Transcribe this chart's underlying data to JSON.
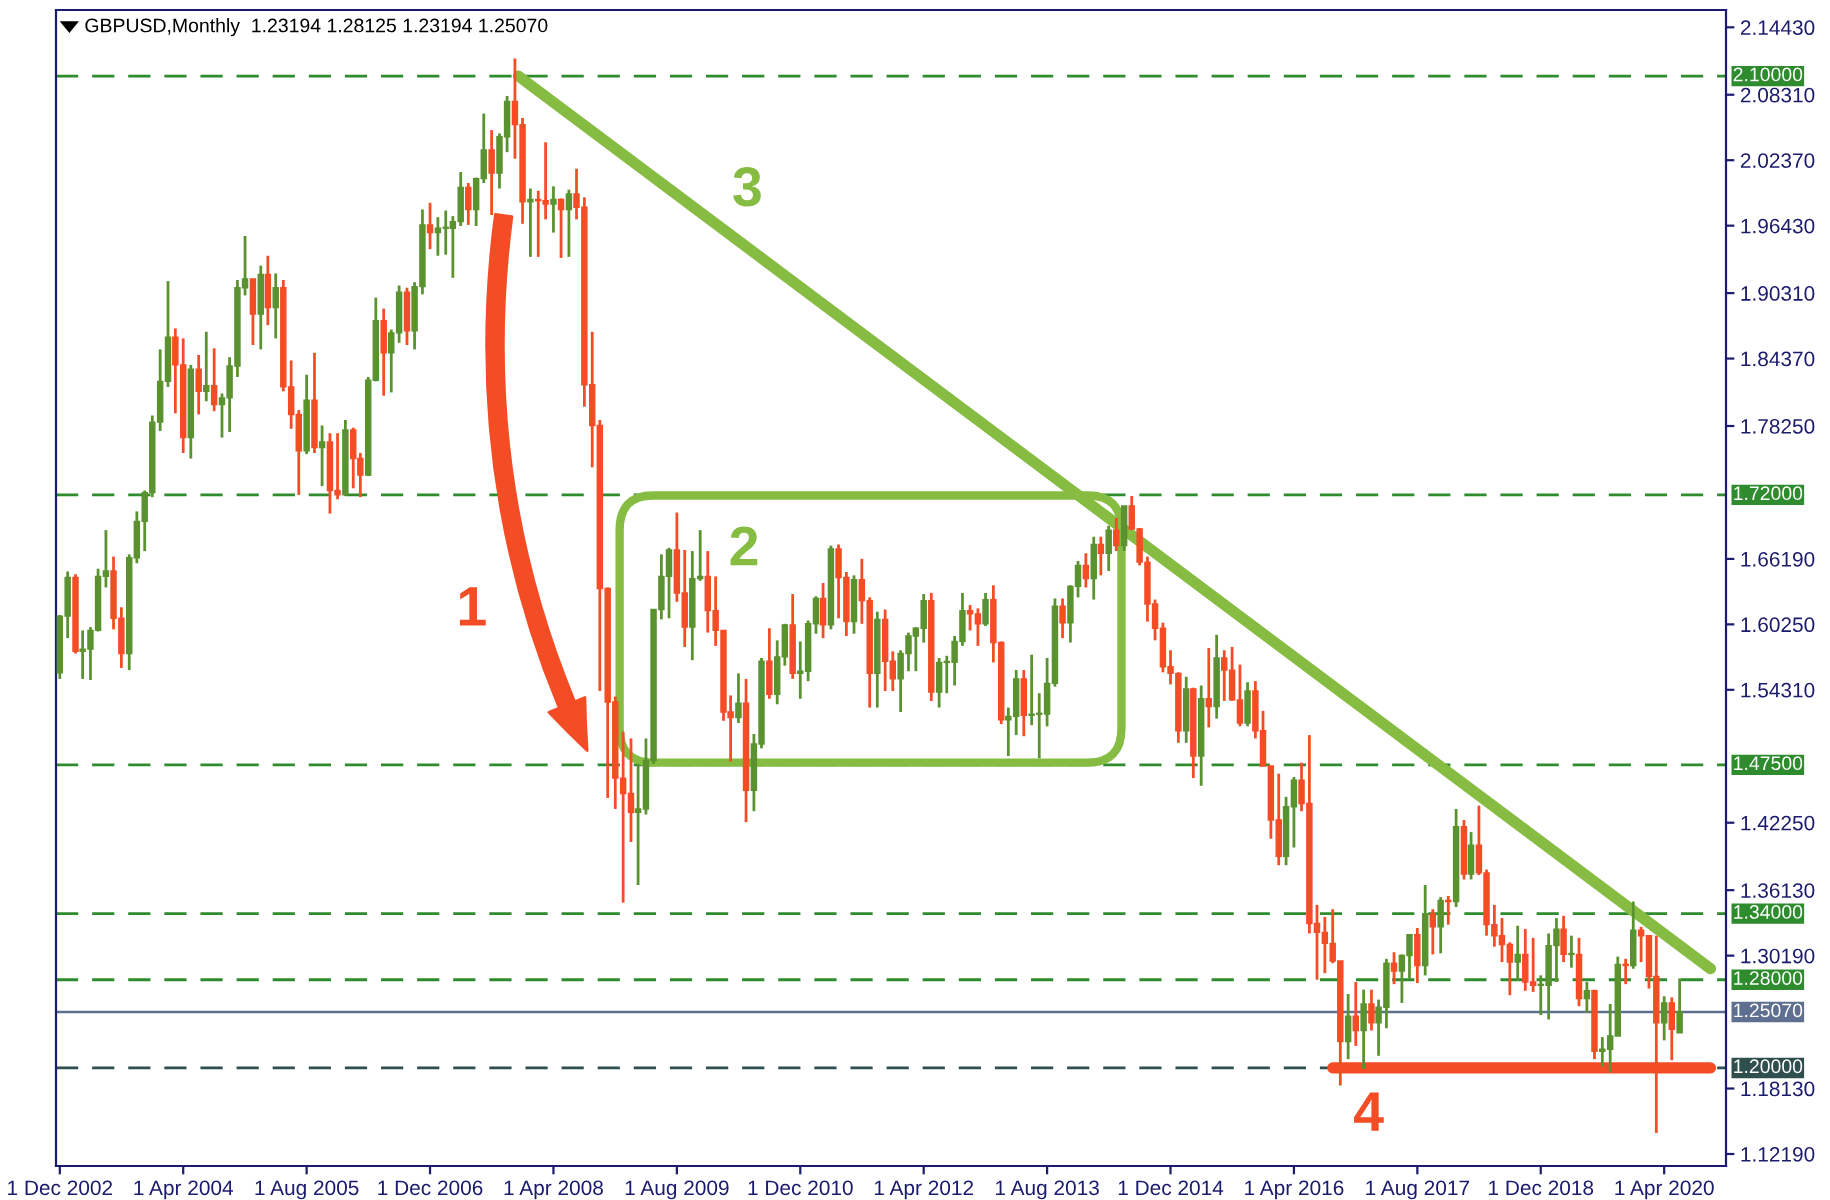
{
  "chart_data": {
    "type": "candlestick",
    "title": "GBPUSD,Monthly  1.23194 1.28125 1.23194 1.25070",
    "x": [
      "2002-12",
      "2003-01",
      "2003-02",
      "2003-03",
      "2003-04",
      "2003-05",
      "2003-06",
      "2003-07",
      "2003-08",
      "2003-09",
      "2003-10",
      "2003-11",
      "2003-12",
      "2004-01",
      "2004-02",
      "2004-03",
      "2004-04",
      "2004-05",
      "2004-06",
      "2004-07",
      "2004-08",
      "2004-09",
      "2004-10",
      "2004-11",
      "2004-12",
      "2005-01",
      "2005-02",
      "2005-03",
      "2005-04",
      "2005-05",
      "2005-06",
      "2005-07",
      "2005-08",
      "2005-09",
      "2005-10",
      "2005-11",
      "2005-12",
      "2006-01",
      "2006-02",
      "2006-03",
      "2006-04",
      "2006-05",
      "2006-06",
      "2006-07",
      "2006-08",
      "2006-09",
      "2006-10",
      "2006-11",
      "2006-12",
      "2007-01",
      "2007-02",
      "2007-03",
      "2007-04",
      "2007-05",
      "2007-06",
      "2007-07",
      "2007-08",
      "2007-09",
      "2007-10",
      "2007-11",
      "2007-12",
      "2008-01",
      "2008-02",
      "2008-03",
      "2008-04",
      "2008-05",
      "2008-06",
      "2008-07",
      "2008-08",
      "2008-09",
      "2008-10",
      "2008-11",
      "2008-12",
      "2009-01",
      "2009-02",
      "2009-03",
      "2009-04",
      "2009-05",
      "2009-06",
      "2009-07",
      "2009-08",
      "2009-09",
      "2009-10",
      "2009-11",
      "2009-12",
      "2010-01",
      "2010-02",
      "2010-03",
      "2010-04",
      "2010-05",
      "2010-06",
      "2010-07",
      "2010-08",
      "2010-09",
      "2010-10",
      "2010-11",
      "2010-12",
      "2011-01",
      "2011-02",
      "2011-03",
      "2011-04",
      "2011-05",
      "2011-06",
      "2011-07",
      "2011-08",
      "2011-09",
      "2011-10",
      "2011-11",
      "2011-12",
      "2012-01",
      "2012-02",
      "2012-03",
      "2012-04",
      "2012-05",
      "2012-06",
      "2012-07",
      "2012-08",
      "2012-09",
      "2012-10",
      "2012-11",
      "2012-12",
      "2013-01",
      "2013-02",
      "2013-03",
      "2013-04",
      "2013-05",
      "2013-06",
      "2013-07",
      "2013-08",
      "2013-09",
      "2013-10",
      "2013-11",
      "2013-12",
      "2014-01",
      "2014-02",
      "2014-03",
      "2014-04",
      "2014-05",
      "2014-06",
      "2014-07",
      "2014-08",
      "2014-09",
      "2014-10",
      "2014-11",
      "2014-12",
      "2015-01",
      "2015-02",
      "2015-03",
      "2015-04",
      "2015-05",
      "2015-06",
      "2015-07",
      "2015-08",
      "2015-09",
      "2015-10",
      "2015-11",
      "2015-12",
      "2016-01",
      "2016-02",
      "2016-03",
      "2016-04",
      "2016-05",
      "2016-06",
      "2016-07",
      "2016-08",
      "2016-09",
      "2016-10",
      "2016-11",
      "2016-12",
      "2017-01",
      "2017-02",
      "2017-03",
      "2017-04",
      "2017-05",
      "2017-06",
      "2017-07",
      "2017-08",
      "2017-09",
      "2017-10",
      "2017-11",
      "2017-12",
      "2018-01",
      "2018-02",
      "2018-03",
      "2018-04",
      "2018-05",
      "2018-06",
      "2018-07",
      "2018-08",
      "2018-09",
      "2018-10",
      "2018-11",
      "2018-12",
      "2019-01",
      "2019-02",
      "2019-03",
      "2019-04",
      "2019-05",
      "2019-06",
      "2019-07",
      "2019-08",
      "2019-09",
      "2019-10",
      "2019-11",
      "2019-12",
      "2020-01",
      "2020-02",
      "2020-03",
      "2020-04",
      "2020-05",
      "2020-06"
    ],
    "ohlc": [
      [
        1.5585,
        1.611,
        1.553,
        1.61
      ],
      [
        1.61,
        1.6505,
        1.59,
        1.645
      ],
      [
        1.645,
        1.648,
        1.576,
        1.578
      ],
      [
        1.578,
        1.597,
        1.553,
        1.58
      ],
      [
        1.58,
        1.6,
        1.552,
        1.597
      ],
      [
        1.597,
        1.653,
        1.596,
        1.646
      ],
      [
        1.646,
        1.688,
        1.636,
        1.651
      ],
      [
        1.651,
        1.664,
        1.598,
        1.608
      ],
      [
        1.608,
        1.618,
        1.563,
        1.576
      ],
      [
        1.576,
        1.666,
        1.561,
        1.663
      ],
      [
        1.663,
        1.705,
        1.658,
        1.696
      ],
      [
        1.696,
        1.724,
        1.669,
        1.722
      ],
      [
        1.722,
        1.792,
        1.718,
        1.786
      ],
      [
        1.786,
        1.852,
        1.778,
        1.823
      ],
      [
        1.823,
        1.914,
        1.818,
        1.863
      ],
      [
        1.863,
        1.871,
        1.794,
        1.838
      ],
      [
        1.838,
        1.862,
        1.758,
        1.772
      ],
      [
        1.772,
        1.838,
        1.753,
        1.834
      ],
      [
        1.834,
        1.847,
        1.793,
        1.814
      ],
      [
        1.814,
        1.868,
        1.805,
        1.819
      ],
      [
        1.819,
        1.853,
        1.796,
        1.802
      ],
      [
        1.802,
        1.812,
        1.772,
        1.808
      ],
      [
        1.808,
        1.845,
        1.777,
        1.837
      ],
      [
        1.837,
        1.915,
        1.827,
        1.908
      ],
      [
        1.908,
        1.955,
        1.901,
        1.916
      ],
      [
        1.916,
        1.916,
        1.856,
        1.884
      ],
      [
        1.884,
        1.928,
        1.852,
        1.92
      ],
      [
        1.92,
        1.937,
        1.874,
        1.89
      ],
      [
        1.89,
        1.921,
        1.862,
        1.908
      ],
      [
        1.908,
        1.915,
        1.814,
        1.818
      ],
      [
        1.818,
        1.842,
        1.78,
        1.793
      ],
      [
        1.793,
        1.797,
        1.72,
        1.76
      ],
      [
        1.76,
        1.829,
        1.757,
        1.806
      ],
      [
        1.806,
        1.849,
        1.758,
        1.763
      ],
      [
        1.763,
        1.783,
        1.728,
        1.768
      ],
      [
        1.768,
        1.776,
        1.703,
        1.724
      ],
      [
        1.724,
        1.776,
        1.716,
        1.72
      ],
      [
        1.72,
        1.788,
        1.719,
        1.779
      ],
      [
        1.779,
        1.781,
        1.726,
        1.753
      ],
      [
        1.753,
        1.758,
        1.718,
        1.738
      ],
      [
        1.738,
        1.827,
        1.737,
        1.824
      ],
      [
        1.824,
        1.899,
        1.823,
        1.878
      ],
      [
        1.878,
        1.889,
        1.81,
        1.849
      ],
      [
        1.849,
        1.87,
        1.813,
        1.867
      ],
      [
        1.867,
        1.91,
        1.858,
        1.904
      ],
      [
        1.904,
        1.908,
        1.856,
        1.869
      ],
      [
        1.869,
        1.913,
        1.852,
        1.909
      ],
      [
        1.909,
        1.979,
        1.902,
        1.965
      ],
      [
        1.965,
        1.985,
        1.943,
        1.958
      ],
      [
        1.958,
        1.972,
        1.937,
        1.962
      ],
      [
        1.962,
        1.978,
        1.938,
        1.962
      ],
      [
        1.962,
        1.973,
        1.917,
        1.968
      ],
      [
        1.968,
        2.013,
        1.964,
        1.999
      ],
      [
        1.999,
        2.003,
        1.965,
        1.979
      ],
      [
        1.979,
        2.008,
        1.964,
        2.007
      ],
      [
        2.007,
        2.066,
        2.003,
        2.033
      ],
      [
        2.033,
        2.051,
        1.974,
        2.012
      ],
      [
        2.012,
        2.048,
        1.998,
        2.045
      ],
      [
        2.045,
        2.082,
        2.031,
        2.077
      ],
      [
        2.077,
        2.116,
        2.025,
        2.056
      ],
      [
        2.056,
        2.062,
        1.966,
        1.986
      ],
      [
        1.986,
        1.998,
        1.936,
        1.988
      ],
      [
        1.988,
        1.996,
        1.936,
        1.987
      ],
      [
        1.987,
        2.04,
        1.97,
        1.984
      ],
      [
        1.984,
        2.0,
        1.958,
        1.988
      ],
      [
        1.988,
        1.989,
        1.935,
        1.979
      ],
      [
        1.979,
        1.997,
        1.936,
        1.993
      ],
      [
        1.993,
        2.016,
        1.97,
        1.981
      ],
      [
        1.981,
        1.99,
        1.8,
        1.82
      ],
      [
        1.82,
        1.868,
        1.745,
        1.783
      ],
      [
        1.783,
        1.788,
        1.542,
        1.635
      ],
      [
        1.635,
        1.636,
        1.445,
        1.532
      ],
      [
        1.532,
        1.537,
        1.435,
        1.463
      ],
      [
        1.463,
        1.505,
        1.35,
        1.449
      ],
      [
        1.449,
        1.499,
        1.405,
        1.432
      ],
      [
        1.432,
        1.476,
        1.366,
        1.435
      ],
      [
        1.435,
        1.499,
        1.43,
        1.479
      ],
      [
        1.479,
        1.616,
        1.476,
        1.616
      ],
      [
        1.616,
        1.666,
        1.607,
        1.646
      ],
      [
        1.646,
        1.672,
        1.608,
        1.67
      ],
      [
        1.67,
        1.704,
        1.623,
        1.631
      ],
      [
        1.631,
        1.67,
        1.582,
        1.6
      ],
      [
        1.6,
        1.669,
        1.57,
        1.644
      ],
      [
        1.644,
        1.688,
        1.642,
        1.646
      ],
      [
        1.646,
        1.669,
        1.595,
        1.615
      ],
      [
        1.615,
        1.646,
        1.583,
        1.597
      ],
      [
        1.597,
        1.597,
        1.515,
        1.523
      ],
      [
        1.523,
        1.538,
        1.478,
        1.518
      ],
      [
        1.518,
        1.558,
        1.513,
        1.531
      ],
      [
        1.531,
        1.553,
        1.423,
        1.452
      ],
      [
        1.452,
        1.503,
        1.433,
        1.494
      ],
      [
        1.494,
        1.572,
        1.49,
        1.569
      ],
      [
        1.569,
        1.599,
        1.535,
        1.539
      ],
      [
        1.539,
        1.588,
        1.53,
        1.573
      ],
      [
        1.573,
        1.603,
        1.565,
        1.602
      ],
      [
        1.602,
        1.63,
        1.553,
        1.558
      ],
      [
        1.558,
        1.587,
        1.535,
        1.56
      ],
      [
        1.56,
        1.606,
        1.551,
        1.603
      ],
      [
        1.603,
        1.628,
        1.594,
        1.626
      ],
      [
        1.626,
        1.64,
        1.59,
        1.602
      ],
      [
        1.602,
        1.674,
        1.598,
        1.671
      ],
      [
        1.671,
        1.675,
        1.608,
        1.645
      ],
      [
        1.645,
        1.65,
        1.592,
        1.605
      ],
      [
        1.605,
        1.647,
        1.594,
        1.643
      ],
      [
        1.643,
        1.662,
        1.603,
        1.624
      ],
      [
        1.624,
        1.627,
        1.527,
        1.558
      ],
      [
        1.558,
        1.614,
        1.527,
        1.607
      ],
      [
        1.607,
        1.616,
        1.542,
        1.569
      ],
      [
        1.569,
        1.578,
        1.542,
        1.553
      ],
      [
        1.553,
        1.579,
        1.523,
        1.576
      ],
      [
        1.576,
        1.595,
        1.56,
        1.592
      ],
      [
        1.592,
        1.6,
        1.56,
        1.599
      ],
      [
        1.599,
        1.63,
        1.586,
        1.624
      ],
      [
        1.624,
        1.631,
        1.533,
        1.541
      ],
      [
        1.541,
        1.572,
        1.527,
        1.568
      ],
      [
        1.568,
        1.574,
        1.54,
        1.568
      ],
      [
        1.568,
        1.592,
        1.547,
        1.587
      ],
      [
        1.587,
        1.631,
        1.583,
        1.615
      ],
      [
        1.615,
        1.62,
        1.597,
        1.612
      ],
      [
        1.612,
        1.617,
        1.583,
        1.603
      ],
      [
        1.603,
        1.631,
        1.601,
        1.625
      ],
      [
        1.625,
        1.638,
        1.568,
        1.586
      ],
      [
        1.586,
        1.587,
        1.512,
        1.516
      ],
      [
        1.516,
        1.527,
        1.483,
        1.519
      ],
      [
        1.519,
        1.561,
        1.502,
        1.553
      ],
      [
        1.553,
        1.561,
        1.501,
        1.52
      ],
      [
        1.52,
        1.575,
        1.511,
        1.521
      ],
      [
        1.521,
        1.54,
        1.481,
        1.521
      ],
      [
        1.521,
        1.572,
        1.51,
        1.549
      ],
      [
        1.549,
        1.626,
        1.546,
        1.619
      ],
      [
        1.619,
        1.626,
        1.59,
        1.604
      ],
      [
        1.604,
        1.638,
        1.586,
        1.637
      ],
      [
        1.637,
        1.66,
        1.627,
        1.656
      ],
      [
        1.656,
        1.667,
        1.636,
        1.644
      ],
      [
        1.644,
        1.682,
        1.625,
        1.675
      ],
      [
        1.675,
        1.682,
        1.647,
        1.667
      ],
      [
        1.667,
        1.692,
        1.651,
        1.688
      ],
      [
        1.688,
        1.699,
        1.669,
        1.674
      ],
      [
        1.674,
        1.71,
        1.669,
        1.71
      ],
      [
        1.71,
        1.719,
        1.688,
        1.689
      ],
      [
        1.689,
        1.69,
        1.656,
        1.659
      ],
      [
        1.659,
        1.664,
        1.605,
        1.621
      ],
      [
        1.621,
        1.625,
        1.588,
        1.599
      ],
      [
        1.599,
        1.604,
        1.559,
        1.564
      ],
      [
        1.564,
        1.579,
        1.548,
        1.558
      ],
      [
        1.558,
        1.559,
        1.495,
        1.506
      ],
      [
        1.506,
        1.555,
        1.495,
        1.544
      ],
      [
        1.544,
        1.545,
        1.463,
        1.483
      ],
      [
        1.483,
        1.547,
        1.456,
        1.535
      ],
      [
        1.535,
        1.581,
        1.509,
        1.528
      ],
      [
        1.528,
        1.593,
        1.517,
        1.572
      ],
      [
        1.572,
        1.579,
        1.533,
        1.561
      ],
      [
        1.561,
        1.582,
        1.533,
        1.534
      ],
      [
        1.534,
        1.566,
        1.51,
        1.513
      ],
      [
        1.513,
        1.55,
        1.51,
        1.542
      ],
      [
        1.542,
        1.551,
        1.499,
        1.506
      ],
      [
        1.506,
        1.524,
        1.474,
        1.474
      ],
      [
        1.474,
        1.474,
        1.408,
        1.425
      ],
      [
        1.425,
        1.467,
        1.384,
        1.392
      ],
      [
        1.392,
        1.446,
        1.384,
        1.437
      ],
      [
        1.437,
        1.464,
        1.4,
        1.461
      ],
      [
        1.461,
        1.477,
        1.433,
        1.44
      ],
      [
        1.44,
        1.502,
        1.322,
        1.331
      ],
      [
        1.331,
        1.348,
        1.28,
        1.323
      ],
      [
        1.323,
        1.337,
        1.286,
        1.313
      ],
      [
        1.313,
        1.344,
        1.295,
        1.297
      ],
      [
        1.297,
        1.297,
        1.184,
        1.224
      ],
      [
        1.224,
        1.267,
        1.208,
        1.247
      ],
      [
        1.247,
        1.278,
        1.22,
        1.234
      ],
      [
        1.234,
        1.271,
        1.199,
        1.258
      ],
      [
        1.258,
        1.271,
        1.234,
        1.241
      ],
      [
        1.241,
        1.262,
        1.211,
        1.255
      ],
      [
        1.255,
        1.299,
        1.236,
        1.295
      ],
      [
        1.295,
        1.305,
        1.276,
        1.288
      ],
      [
        1.288,
        1.303,
        1.259,
        1.302
      ],
      [
        1.302,
        1.321,
        1.281,
        1.321
      ],
      [
        1.321,
        1.327,
        1.277,
        1.293
      ],
      [
        1.293,
        1.366,
        1.284,
        1.34
      ],
      [
        1.34,
        1.344,
        1.303,
        1.328
      ],
      [
        1.328,
        1.355,
        1.304,
        1.352
      ],
      [
        1.352,
        1.356,
        1.33,
        1.351
      ],
      [
        1.351,
        1.435,
        1.346,
        1.419
      ],
      [
        1.419,
        1.425,
        1.371,
        1.376
      ],
      [
        1.376,
        1.414,
        1.371,
        1.402
      ],
      [
        1.402,
        1.438,
        1.375,
        1.377
      ],
      [
        1.377,
        1.38,
        1.32,
        1.33
      ],
      [
        1.33,
        1.348,
        1.31,
        1.32
      ],
      [
        1.32,
        1.336,
        1.296,
        1.312
      ],
      [
        1.312,
        1.314,
        1.266,
        1.296
      ],
      [
        1.296,
        1.329,
        1.279,
        1.303
      ],
      [
        1.303,
        1.326,
        1.27,
        1.278
      ],
      [
        1.278,
        1.318,
        1.269,
        1.275
      ],
      [
        1.275,
        1.284,
        1.248,
        1.275
      ],
      [
        1.275,
        1.322,
        1.244,
        1.311
      ],
      [
        1.311,
        1.336,
        1.278,
        1.326
      ],
      [
        1.326,
        1.338,
        1.296,
        1.303
      ],
      [
        1.303,
        1.32,
        1.291,
        1.303
      ],
      [
        1.303,
        1.318,
        1.256,
        1.263
      ],
      [
        1.263,
        1.278,
        1.25,
        1.27
      ],
      [
        1.27,
        1.271,
        1.208,
        1.215
      ],
      [
        1.215,
        1.228,
        1.201,
        1.217
      ],
      [
        1.217,
        1.258,
        1.196,
        1.229
      ],
      [
        1.229,
        1.301,
        1.229,
        1.294
      ],
      [
        1.294,
        1.299,
        1.276,
        1.293
      ],
      [
        1.293,
        1.351,
        1.29,
        1.325
      ],
      [
        1.325,
        1.328,
        1.296,
        1.32
      ],
      [
        1.32,
        1.32,
        1.272,
        1.283
      ],
      [
        1.283,
        1.32,
        1.141,
        1.241
      ],
      [
        1.241,
        1.265,
        1.225,
        1.259
      ],
      [
        1.259,
        1.264,
        1.207,
        1.235
      ],
      [
        1.23194,
        1.28125,
        1.23194,
        1.2507
      ]
    ],
    "series": [
      {
        "type": "line",
        "x": [
          "2007-11-15",
          "2020-10"
        ],
        "values": [
          2.1,
          1.29
        ],
        "color": "#86bc42"
      },
      {
        "type": "line",
        "x": [
          "2016-09",
          "2020-10"
        ],
        "values": [
          1.2,
          1.2
        ],
        "color": "#f44d26"
      }
    ],
    "xlim": [
      "2002-11-16",
      "2020-12-01"
    ],
    "ylim": [
      1.111,
      2.16
    ],
    "xticks": [
      {
        "value": "2002-12-01",
        "label": "1 Dec 2002"
      },
      {
        "value": "2004-04-01",
        "label": "1 Apr 2004"
      },
      {
        "value": "2005-08-01",
        "label": "1 Aug 2005"
      },
      {
        "value": "2006-12-01",
        "label": "1 Dec 2006"
      },
      {
        "value": "2008-04-01",
        "label": "1 Apr 2008"
      },
      {
        "value": "2009-08-01",
        "label": "1 Aug 2009"
      },
      {
        "value": "2010-12-01",
        "label": "1 Dec 2010"
      },
      {
        "value": "2012-04-01",
        "label": "1 Apr 2012"
      },
      {
        "value": "2013-08-01",
        "label": "1 Aug 2013"
      },
      {
        "value": "2014-12-01",
        "label": "1 Dec 2014"
      },
      {
        "value": "2016-04-01",
        "label": "1 Apr 2016"
      },
      {
        "value": "2017-08-01",
        "label": "1 Aug 2017"
      },
      {
        "value": "2018-12-01",
        "label": "1 Dec 2018"
      },
      {
        "value": "2020-04-01",
        "label": "1 Apr 2020"
      }
    ],
    "yticks": [
      {
        "value": 2.1443,
        "label": "2.14430"
      },
      {
        "value": 2.0831,
        "label": "2.08310"
      },
      {
        "value": 2.0237,
        "label": "2.02370"
      },
      {
        "value": 1.9643,
        "label": "1.96430"
      },
      {
        "value": 1.9031,
        "label": "1.90310"
      },
      {
        "value": 1.8437,
        "label": "1.84370"
      },
      {
        "value": 1.7825,
        "label": "1.78250"
      },
      {
        "value": 1.6619,
        "label": "1.66190"
      },
      {
        "value": 1.6025,
        "label": "1.60250"
      },
      {
        "value": 1.5431,
        "label": "1.54310"
      },
      {
        "value": 1.4225,
        "label": "1.42250"
      },
      {
        "value": 1.3613,
        "label": "1.36130"
      },
      {
        "value": 1.3019,
        "label": "1.30190"
      },
      {
        "value": 1.1813,
        "label": "1.18130"
      },
      {
        "value": 1.1219,
        "label": "1.12190"
      }
    ],
    "ref_lines": [
      {
        "axis": "y",
        "value": 2.1,
        "label": "2.10000",
        "color": "#2e8b2e",
        "line_style": "dashed"
      },
      {
        "axis": "y",
        "value": 1.72,
        "label": "1.72000",
        "color": "#2e8b2e",
        "line_style": "dashed"
      },
      {
        "axis": "y",
        "value": 1.475,
        "label": "1.47500",
        "color": "#2e8b2e",
        "line_style": "dashed"
      },
      {
        "axis": "y",
        "value": 1.34,
        "label": "1.34000",
        "color": "#2e8b2e",
        "line_style": "dashed"
      },
      {
        "axis": "y",
        "value": 1.28,
        "label": "1.28000",
        "color": "#2e8b2e",
        "line_style": "dashed"
      },
      {
        "axis": "y",
        "value": 1.2507,
        "label": "1.25070",
        "color": "#5f6f8f",
        "line_style": "solid"
      },
      {
        "axis": "y",
        "value": 1.2,
        "label": "1.20000",
        "color": "#2f4f4f",
        "line_style": "dashed"
      }
    ],
    "annotations": [
      "1",
      "2",
      "3",
      "4"
    ],
    "grid": false,
    "legend": false
  }
}
